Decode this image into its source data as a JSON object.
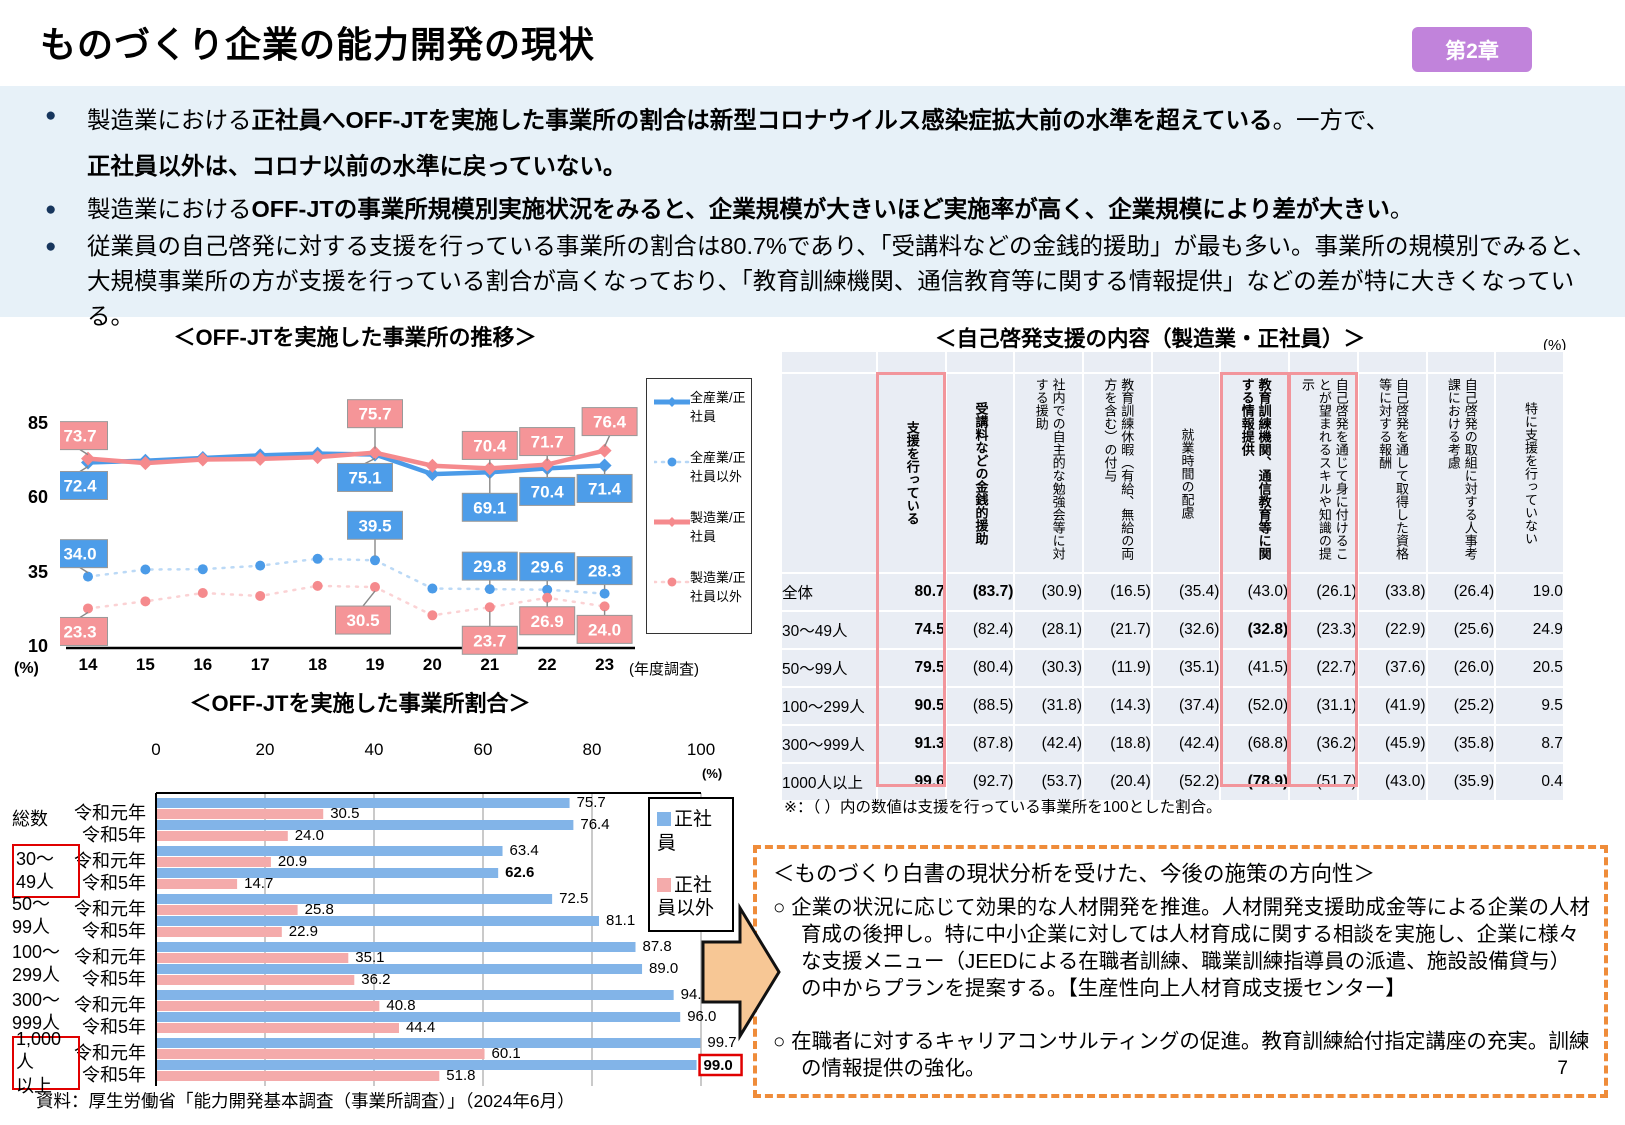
{
  "header": {
    "title": "ものづくり企業の能力開発の現状",
    "chapter_badge": "第2章"
  },
  "bullets": [
    {
      "segments": [
        {
          "text": "製造業における",
          "bold": false
        },
        {
          "text": "正社員へOFF-JTを実施した事業所の割合は新型コロナウイルス感染症拡大前の水準を超えている",
          "bold": true
        },
        {
          "text": "。一方で、",
          "bold": false
        },
        {
          "text": "正社員以外は、コロナ以前の水準に戻っていない。",
          "bold": true,
          "br": true
        }
      ],
      "wide": true
    },
    {
      "segments": [
        {
          "text": "製造業における",
          "bold": false
        },
        {
          "text": "OFF-JTの事業所規模別実施状況をみると、企業規模が大きいほど実施率が高く、企業規模により差が大きい",
          "bold": true
        },
        {
          "text": "。",
          "bold": false
        }
      ]
    },
    {
      "segments": [
        {
          "text": "従業員の自己啓発に対する支援を行っている事業所の割合は80.7%であり、「受講料などの金銭的援助」が最も多い。事業所の規模別でみると、大規模事業所の方が支援を行っている割合が高くなっており、「教育訓練機関、通信教育等に関する情報提供」などの差が特に大きくなっている。",
          "bold": false
        }
      ]
    }
  ],
  "chart_data": [
    {
      "type": "line",
      "title": "＜OFF-JTを実施した事業所の推移＞",
      "x": [
        "14",
        "15",
        "16",
        "17",
        "18",
        "19",
        "20",
        "21",
        "22",
        "23"
      ],
      "x_note": "(年度調査)",
      "y_ticks": [
        85,
        60,
        35,
        10
      ],
      "y_unit": "(%)",
      "ylim": [
        10,
        92
      ],
      "series": [
        {
          "name": "全産業/正社員",
          "color": "#4b9be8",
          "box_color": "#4d9de9",
          "style": "solid",
          "marker": "diamond",
          "label_side": "below",
          "values": [
            72.4,
            73.0,
            73.9,
            74.8,
            75.4,
            75.1,
            68.5,
            69.1,
            70.4,
            71.4
          ],
          "labels": {
            "0": "72.4",
            "5": "75.1",
            "7": "69.1",
            "8": "70.4",
            "9": "71.4"
          }
        },
        {
          "name": "全産業/正社員以外",
          "color": "#4b9be8",
          "box_color": "#4d9de9",
          "style": "dotted",
          "marker": "circle",
          "label_side": "above",
          "values": [
            34.0,
            36.4,
            36.5,
            37.7,
            40.0,
            39.5,
            30.0,
            29.8,
            29.6,
            28.3
          ],
          "labels": {
            "0": "34.0",
            "5": "39.5",
            "7": "29.8",
            "8": "29.6",
            "9": "28.3"
          }
        },
        {
          "name": "製造業/正社員",
          "color": "#f58a8d",
          "box_color": "#f59598",
          "style": "solid",
          "marker": "diamond",
          "label_side": "above",
          "values": [
            73.7,
            72.2,
            73.4,
            73.6,
            74.2,
            75.7,
            71.3,
            70.4,
            71.7,
            76.4
          ],
          "labels": {
            "0": "73.7",
            "5": "75.7",
            "7": "70.4",
            "8": "71.7",
            "9": "76.4"
          }
        },
        {
          "name": "製造業/正社員以外",
          "color": "#f58a8d",
          "box_color": "#f59598",
          "style": "dotted",
          "marker": "circle",
          "label_side": "below",
          "values": [
            23.3,
            25.7,
            28.5,
            27.5,
            30.9,
            30.5,
            21.0,
            23.7,
            26.9,
            24.0
          ],
          "labels": {
            "0": "23.3",
            "5": "30.5",
            "7": "23.7",
            "8": "26.9",
            "9": "24.0"
          }
        }
      ]
    },
    {
      "type": "bar",
      "title": "＜OFF-JTを実施した事業所割合＞",
      "x_ticks": [
        0,
        20,
        40,
        60,
        80,
        100
      ],
      "x_unit": "(%)",
      "xlim": [
        0,
        100
      ],
      "legend": [
        {
          "label": "正社員",
          "color": "#82b4e8"
        },
        {
          "label": "正社員以外",
          "color": "#f4abab"
        }
      ],
      "groups": [
        {
          "label": "総数",
          "boxed": false,
          "rows": [
            {
              "year": "令和元年",
              "seishain": "75.7",
              "other": "30.5"
            },
            {
              "year": "令和5年",
              "seishain": "76.4",
              "other": "24.0"
            }
          ]
        },
        {
          "label": "30～\n49人",
          "boxed": true,
          "rows": [
            {
              "year": "令和元年",
              "seishain": "63.4",
              "other": "20.9"
            },
            {
              "year": "令和5年",
              "seishain": "62.6",
              "other": "14.7",
              "bold_seishain": true
            }
          ]
        },
        {
          "label": "50～\n99人",
          "boxed": false,
          "rows": [
            {
              "year": "令和元年",
              "seishain": "72.5",
              "other": "25.8"
            },
            {
              "year": "令和5年",
              "seishain": "81.1",
              "other": "22.9"
            }
          ]
        },
        {
          "label": "100～\n299人",
          "boxed": false,
          "rows": [
            {
              "year": "令和元年",
              "seishain": "87.8",
              "other": "35.1"
            },
            {
              "year": "令和5年",
              "seishain": "89.0",
              "other": "36.2"
            }
          ]
        },
        {
          "label": "300～\n999人",
          "boxed": false,
          "rows": [
            {
              "year": "令和元年",
              "seishain": "94.8",
              "other": "40.8"
            },
            {
              "year": "令和5年",
              "seishain": "96.0",
              "other": "44.4"
            }
          ]
        },
        {
          "label": "1,000人\n以上",
          "boxed": true,
          "rows": [
            {
              "year": "令和元年",
              "seishain": "99.7",
              "other": "60.1"
            },
            {
              "year": "令和5年",
              "seishain": "99.0",
              "other": "51.8",
              "bold_seishain": true,
              "boxed_seishain": true
            }
          ]
        }
      ]
    }
  ],
  "table": {
    "title": "＜自己啓発支援の内容（製造業・正社員）＞",
    "unit": "(%)",
    "col_headers": [
      {
        "text": "支援を行っている",
        "bold": true,
        "pink": true
      },
      {
        "text": "受講料などの金銭的援助",
        "bold": true
      },
      {
        "text": "社内での自主的な勉強会等に対する援助"
      },
      {
        "text": "教育訓練休暇（有給、無給の両方を含む）の付与"
      },
      {
        "text": "就業時間の配慮"
      },
      {
        "text": "教育訓練機関、通信教育等に関する情報提供",
        "bold": true,
        "pink": true
      },
      {
        "text": "自己啓発を通じて身に付けることが望まれるスキルや知識の提示",
        "pink": true
      },
      {
        "text": "自己啓発を通して取得した資格等に対する報酬"
      },
      {
        "text": "自己啓発の取組に対する人事考課における考慮"
      },
      {
        "text": "特に支援を行っていない"
      }
    ],
    "rows": [
      {
        "label": "全体",
        "values": [
          "80.7",
          "(83.7)",
          "(30.9)",
          "(16.5)",
          "(35.4)",
          "(43.0)",
          "(26.1)",
          "(33.8)",
          "(26.4)",
          "19.0"
        ],
        "bold_cols": [
          0,
          1
        ]
      },
      {
        "label": "30～49人",
        "values": [
          "74.5",
          "(82.4)",
          "(28.1)",
          "(21.7)",
          "(32.6)",
          "(32.8)",
          "(23.3)",
          "(22.9)",
          "(25.6)",
          "24.9"
        ],
        "bold_cols": [
          0,
          5
        ]
      },
      {
        "label": "50～99人",
        "values": [
          "79.5",
          "(80.4)",
          "(30.3)",
          "(11.9)",
          "(35.1)",
          "(41.5)",
          "(22.7)",
          "(37.6)",
          "(26.0)",
          "20.5"
        ],
        "bold_cols": [
          0
        ]
      },
      {
        "label": "100～299人",
        "values": [
          "90.5",
          "(88.5)",
          "(31.8)",
          "(14.3)",
          "(37.4)",
          "(52.0)",
          "(31.1)",
          "(41.9)",
          "(25.2)",
          "9.5"
        ],
        "bold_cols": [
          0
        ]
      },
      {
        "label": "300～999人",
        "values": [
          "91.3",
          "(87.8)",
          "(42.4)",
          "(18.8)",
          "(42.4)",
          "(68.8)",
          "(36.2)",
          "(45.9)",
          "(35.8)",
          "8.7"
        ],
        "bold_cols": [
          0
        ]
      },
      {
        "label": "1000人以上",
        "values": [
          "99.6",
          "(92.7)",
          "(53.7)",
          "(20.4)",
          "(52.2)",
          "(78.9)",
          "(51.7)",
          "(43.0)",
          "(35.9)",
          "0.4"
        ],
        "bold_cols": [
          0,
          5
        ]
      }
    ],
    "footnote": "※：（ ）内の数値は支援を行っている事業所を100とした割合。"
  },
  "policy_box": {
    "title": "＜ものづくり白書の現状分析を受けた、今後の施策の方向性＞",
    "items": [
      "○ 企業の状況に応じて効果的な人材開発を推進。人材開発支援助成金等による企業の人材育成の後押し。特に中小企業に対しては人材育成に関する相談を実施し、企業に様々な支援メニュー（JEEDによる在職者訓練、職業訓練指導員の派遣、施設設備貸与）の中からプランを提案する。【生産性向上人材育成支援センター】",
      "○ 在職者に対するキャリアコンサルティングの促進。教育訓練給付指定講座の充実。訓練の情報提供の強化。"
    ]
  },
  "source": "資料：厚生労働省「能力開発基本調査（事業所調査）」（2024年6月）",
  "page_number": "7",
  "colors": {
    "summary_bg": "#e7f1f8",
    "badge": "#c183db",
    "line_blue": "#4b9be8",
    "line_pink": "#f58a8d",
    "bar_blue": "#82b4e8",
    "bar_pink": "#f4abab",
    "table_bg": "#e9edf4",
    "pink_outline": "#f2959b",
    "dashed_border": "#ef8c3a",
    "arrow_fill": "#f7c795",
    "red_box": "#e00000"
  }
}
